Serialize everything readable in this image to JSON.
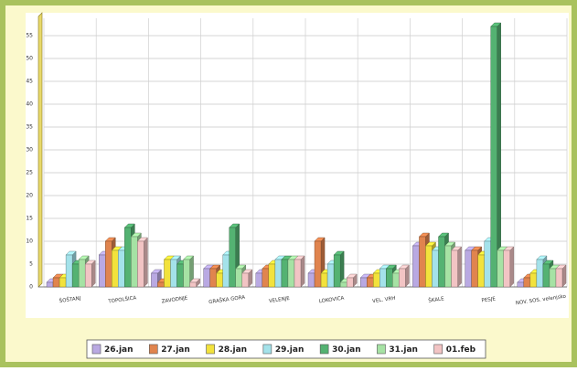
{
  "chart_data": {
    "type": "bar",
    "categories": [
      "ŠOŠTANJ",
      "TOPOLŠICA",
      "ZAVODNJE",
      "GRAŠKA GORA",
      "VELENJE",
      "LOKOVICA",
      "VEL. VRH",
      "ŠKALE",
      "PESJE",
      "NOV. SOS. velenjsko"
    ],
    "series": [
      {
        "name": "26.jan",
        "color": "#b9a9e2",
        "values": [
          1,
          7,
          3,
          4,
          3,
          3,
          2,
          9,
          8,
          1
        ]
      },
      {
        "name": "27.jan",
        "color": "#e0844e",
        "values": [
          2,
          10,
          1,
          4,
          4,
          10,
          2,
          11,
          8,
          2
        ]
      },
      {
        "name": "28.jan",
        "color": "#f2e23c",
        "values": [
          2,
          8,
          6,
          3,
          5,
          3,
          3,
          9,
          7,
          3
        ]
      },
      {
        "name": "29.jan",
        "color": "#a4e2ea",
        "values": [
          7,
          8,
          6,
          7,
          6,
          5,
          4,
          8,
          10,
          6
        ]
      },
      {
        "name": "30.jan",
        "color": "#54b272",
        "values": [
          5,
          13,
          5,
          13,
          6,
          7,
          4,
          11,
          57,
          5
        ]
      },
      {
        "name": "31.jan",
        "color": "#a6e2a4",
        "values": [
          6,
          11,
          6,
          4,
          6,
          1,
          3,
          9,
          8,
          4
        ]
      },
      {
        "name": "01.feb",
        "color": "#f2c4c4",
        "values": [
          5,
          10,
          1,
          3,
          6,
          2,
          4,
          8,
          8,
          4
        ]
      }
    ],
    "ylim": [
      0,
      58
    ],
    "yticks": [
      0,
      5,
      10,
      15,
      20,
      25,
      30,
      35,
      40,
      45,
      50,
      55
    ],
    "grid": true,
    "legend": "bottom"
  }
}
